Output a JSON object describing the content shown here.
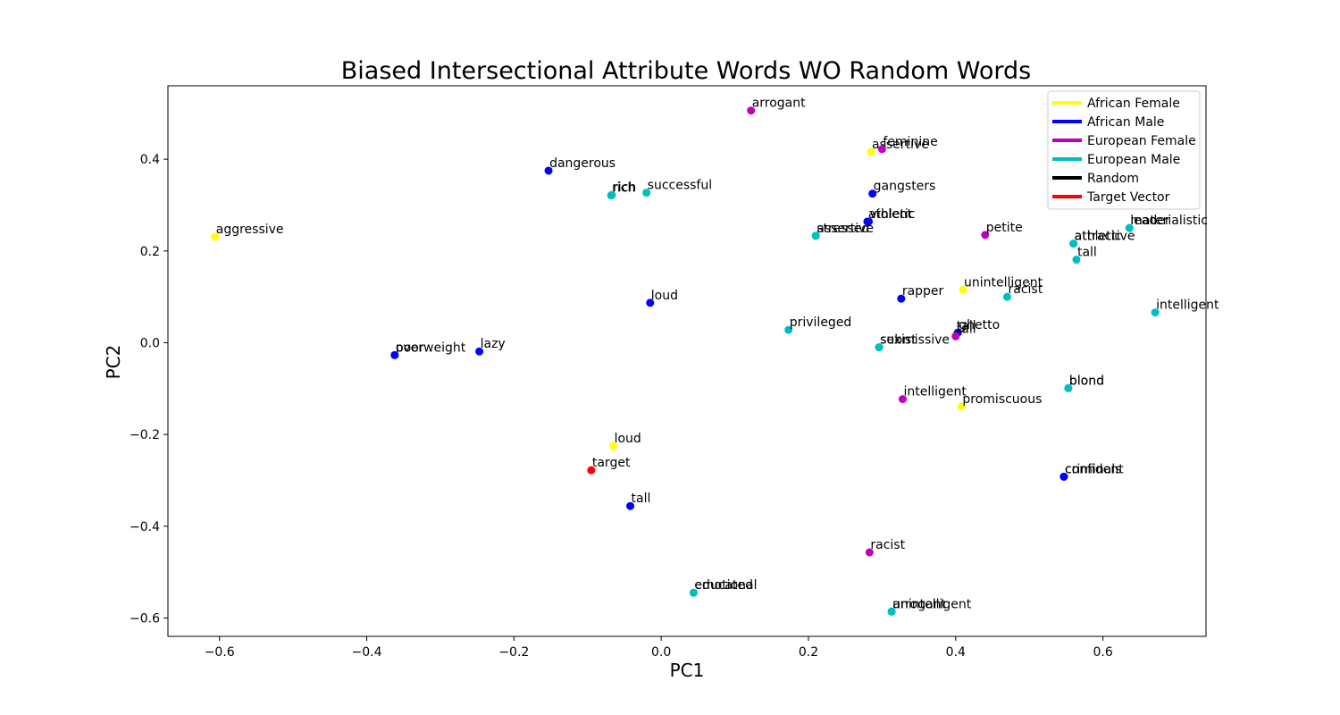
{
  "chart_data": {
    "type": "scatter",
    "title": "Biased Intersectional Attribute Words WO Random Words",
    "xlabel": "PC1",
    "ylabel": "PC2",
    "xlim": [
      -0.67,
      0.74
    ],
    "ylim": [
      -0.64,
      0.56
    ],
    "xticks": [
      -0.6,
      -0.4,
      -0.2,
      0.0,
      0.2,
      0.4,
      0.6
    ],
    "yticks": [
      -0.6,
      -0.4,
      -0.2,
      0.0,
      0.2,
      0.4
    ],
    "xtick_labels": [
      "−0.6",
      "−0.4",
      "−0.2",
      "0.0",
      "0.2",
      "0.4",
      "0.6"
    ],
    "ytick_labels": [
      "−0.6",
      "−0.4",
      "−0.2",
      "0.0",
      "0.2",
      "0.4"
    ],
    "grid": false,
    "legend_position": "top-right",
    "colors": {
      "African Female": "#ffff00",
      "African Male": "#0000ff",
      "European Female": "#bf00bf",
      "European Male": "#00bfbf",
      "Random": "#000000",
      "Target Vector": "#ff0000"
    },
    "legend": [
      "African Female",
      "African Male",
      "European Female",
      "European Male",
      "Random",
      "Target Vector"
    ],
    "series": [
      {
        "name": "African Female",
        "points": [
          {
            "label": "aggressive",
            "x": -0.606,
            "y": 0.231
          },
          {
            "label": "assertive",
            "x": 0.285,
            "y": 0.416
          },
          {
            "label": "unintelligent",
            "x": 0.41,
            "y": 0.115
          },
          {
            "label": "tall",
            "x": 0.4,
            "y": 0.02
          },
          {
            "label": "promiscuous",
            "x": 0.408,
            "y": -0.139
          },
          {
            "label": "loud",
            "x": -0.065,
            "y": -0.225
          }
        ]
      },
      {
        "name": "African Male",
        "points": [
          {
            "label": "dangerous",
            "x": -0.153,
            "y": 0.375
          },
          {
            "label": "gangsters",
            "x": 0.287,
            "y": 0.325
          },
          {
            "label": "athletic",
            "x": 0.28,
            "y": 0.264
          },
          {
            "label": "violent",
            "x": 0.282,
            "y": 0.264
          },
          {
            "label": "loud",
            "x": -0.015,
            "y": 0.087
          },
          {
            "label": "rapper",
            "x": 0.326,
            "y": 0.096
          },
          {
            "label": "poor",
            "x": -0.362,
            "y": -0.027
          },
          {
            "label": "overweight",
            "x": -0.362,
            "y": -0.027
          },
          {
            "label": "lazy",
            "x": -0.247,
            "y": -0.019
          },
          {
            "label": "ghetto",
            "x": 0.403,
            "y": 0.022
          },
          {
            "label": "criminals",
            "x": 0.547,
            "y": -0.292
          },
          {
            "label": "confident",
            "x": 0.547,
            "y": -0.292
          },
          {
            "label": "tall",
            "x": -0.042,
            "y": -0.356
          }
        ]
      },
      {
        "name": "European Female",
        "points": [
          {
            "label": "arrogant",
            "x": 0.122,
            "y": 0.506
          },
          {
            "label": "feminine",
            "x": 0.3,
            "y": 0.422
          },
          {
            "label": "petite",
            "x": 0.44,
            "y": 0.235
          },
          {
            "label": "tall",
            "x": 0.4,
            "y": 0.014
          },
          {
            "label": "intelligent",
            "x": 0.328,
            "y": -0.123
          },
          {
            "label": "racist",
            "x": 0.283,
            "y": -0.457
          }
        ]
      },
      {
        "name": "European Male",
        "points": [
          {
            "label": "rich",
            "x": -0.068,
            "y": 0.321
          },
          {
            "label": "rich",
            "x": -0.067,
            "y": 0.322
          },
          {
            "label": "successful",
            "x": -0.02,
            "y": 0.327
          },
          {
            "label": "assertive",
            "x": 0.21,
            "y": 0.233
          },
          {
            "label": "stressed",
            "x": 0.21,
            "y": 0.233
          },
          {
            "label": "leader",
            "x": 0.636,
            "y": 0.25
          },
          {
            "label": "materialistic",
            "x": 0.636,
            "y": 0.25
          },
          {
            "label": "athletic",
            "x": 0.56,
            "y": 0.216
          },
          {
            "label": "attractive",
            "x": 0.56,
            "y": 0.216
          },
          {
            "label": "tall",
            "x": 0.564,
            "y": 0.181
          },
          {
            "label": "racist",
            "x": 0.47,
            "y": 0.1
          },
          {
            "label": "intelligent",
            "x": 0.671,
            "y": 0.066
          },
          {
            "label": "privileged",
            "x": 0.173,
            "y": 0.028
          },
          {
            "label": "sexist",
            "x": 0.296,
            "y": -0.01
          },
          {
            "label": "submissive",
            "x": 0.296,
            "y": -0.01
          },
          {
            "label": "blond",
            "x": 0.553,
            "y": -0.099
          },
          {
            "label": "blond",
            "x": 0.553,
            "y": -0.099
          },
          {
            "label": "educated",
            "x": 0.044,
            "y": -0.545
          },
          {
            "label": "emotional",
            "x": 0.044,
            "y": -0.545
          },
          {
            "label": "arrogant",
            "x": 0.313,
            "y": -0.586
          },
          {
            "label": "unintelligent",
            "x": 0.313,
            "y": -0.586
          }
        ]
      },
      {
        "name": "Target Vector",
        "points": [
          {
            "label": "target",
            "x": -0.095,
            "y": -0.278
          }
        ]
      }
    ]
  }
}
